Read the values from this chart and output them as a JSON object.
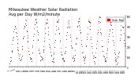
{
  "title": "Milwaukee Weather Solar Radiation",
  "subtitle": "Avg per Day W/m2/minute",
  "title_fontsize": 3.5,
  "bg_color": "#ffffff",
  "plot_bg_color": "#ffffff",
  "grid_color": "#888888",
  "red_color": "#ff0000",
  "black_color": "#000000",
  "ylim": [
    0,
    500
  ],
  "ytick_values": [
    0,
    100,
    200,
    300,
    400,
    500
  ],
  "ytick_fontsize": 2.0,
  "xtick_fontsize": 1.8,
  "legend_label": "Solar Rad",
  "legend_color": "#ff0000",
  "n_months": 13,
  "vline_positions": [
    13,
    26,
    39,
    52,
    65,
    78,
    91,
    104,
    117,
    130,
    143,
    156
  ],
  "marker_size": 1.2,
  "red_data": [
    60,
    80,
    100,
    150,
    200,
    280,
    350,
    400,
    420,
    380,
    320,
    250,
    200,
    160,
    120,
    100,
    80,
    100,
    150,
    200,
    280,
    350,
    420,
    460,
    430,
    380,
    310,
    240,
    180,
    130,
    100,
    80,
    90,
    140,
    200,
    280,
    360,
    430,
    470,
    450,
    400,
    330,
    260,
    190,
    140,
    100,
    80,
    70,
    90,
    150,
    210,
    290,
    370,
    440,
    480,
    460,
    410,
    340,
    270,
    200,
    150,
    110,
    80,
    70,
    80,
    140,
    210,
    300,
    380,
    450,
    480,
    460,
    400,
    330,
    250,
    190,
    140,
    100,
    80,
    70,
    80,
    140,
    200,
    290,
    370,
    440,
    460,
    440,
    380,
    310,
    240,
    170,
    120,
    90,
    80,
    90,
    150,
    220,
    310,
    390,
    460,
    480,
    460,
    400,
    330,
    250,
    180,
    130,
    90,
    70,
    80,
    140,
    200,
    290,
    370,
    440,
    470,
    450,
    390,
    320,
    250,
    180,
    130,
    90,
    70,
    80,
    140,
    210,
    300,
    380,
    450,
    480,
    460,
    390,
    320,
    250,
    180,
    130,
    90,
    70,
    60,
    80,
    120,
    180,
    250,
    330,
    400,
    450,
    460,
    430,
    370,
    300,
    230,
    170,
    120,
    90,
    70,
    60,
    70,
    120,
    180,
    260,
    340,
    410,
    450,
    440,
    390,
    310,
    240
  ],
  "black_data": [
    50,
    70,
    90,
    130,
    180,
    250,
    320,
    380,
    400,
    360,
    300,
    230,
    180,
    150,
    110,
    90,
    70,
    90,
    130,
    180,
    260,
    330,
    400,
    440,
    410,
    360,
    290,
    220,
    160,
    120,
    90,
    70,
    80,
    130,
    180,
    260,
    340,
    410,
    450,
    430,
    380,
    310,
    240,
    170,
    130,
    90,
    70,
    60,
    80,
    130,
    190,
    270,
    350,
    420,
    460,
    440,
    390,
    320,
    250,
    180,
    130,
    100,
    70,
    60,
    70,
    120,
    190,
    280,
    360,
    430,
    460,
    440,
    380,
    310,
    230,
    170,
    120,
    90,
    70,
    60,
    70,
    120,
    180,
    270,
    350,
    420,
    440,
    420,
    360,
    290,
    220,
    160,
    110,
    80,
    70,
    80,
    130,
    200,
    290,
    370,
    440,
    460,
    440,
    380,
    310,
    230,
    160,
    110,
    80,
    60,
    70,
    120,
    180,
    270,
    350,
    420,
    450,
    430,
    370,
    300,
    230,
    160,
    110,
    80,
    60,
    70,
    120,
    190,
    280,
    360,
    430,
    460,
    440,
    370,
    300,
    230,
    160,
    110,
    80,
    60,
    50,
    70,
    110,
    160,
    230,
    310,
    380,
    430,
    440,
    410,
    350,
    280,
    210,
    150,
    110,
    80,
    60,
    50,
    60,
    110,
    160,
    240,
    320,
    390,
    430,
    420,
    370,
    290,
    220
  ]
}
